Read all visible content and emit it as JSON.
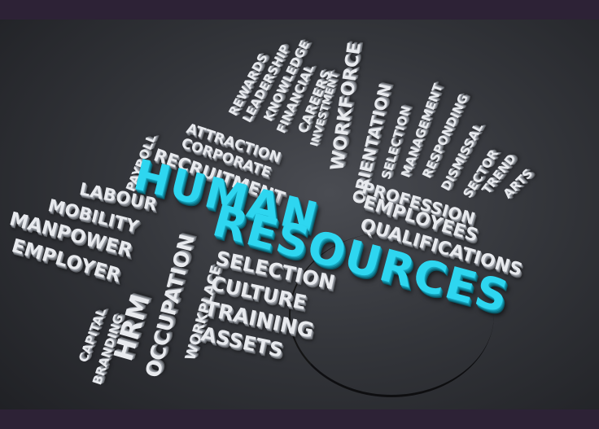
{
  "words": {
    "human": "HUMAN",
    "resources": "RESOURCES",
    "rewards": "REWARDS",
    "leadership": "LEADERSHIP",
    "knowledge": "KNOWLEDGE",
    "financial": "FINANCIAL",
    "careers": "CAREERS",
    "investment": "INVESTMENT",
    "workforce": "WORKFORCE",
    "orientation": "ORIENTATION",
    "selection_small": "SELECTION",
    "management": "MANAGEMENT",
    "responding": "RESPONDING",
    "dismissal": "DISMISSAL",
    "sector": "SECTOR",
    "trend": "TREND",
    "arts": "ARTS",
    "attraction": "ATTRACTION",
    "corporate": "CORPORATE",
    "recruitment": "RECRUITMENT",
    "payroll": "PAYROLL",
    "labour": "LABOUR",
    "mobility": "MOBILITY",
    "manpower": "MANPOWER",
    "employer": "EMPLOYER",
    "capital": "CAPITAL",
    "branding": "BRANDING",
    "hrm": "HRM",
    "occupation": "OCCUPATION",
    "workplace": "WORKPLACE",
    "profession": "PROFESSION",
    "employees": "EMPLOYEES",
    "qualifications": "QUALIFICATIONS",
    "selection": "SELECTION",
    "culture": "CULTURE",
    "training": "TRAINING",
    "assets": "ASSETS"
  },
  "colors": {
    "highlight": "#2ed6f0",
    "word": "#e8eaee",
    "background": "#34363b",
    "frame": "#2d2236"
  }
}
